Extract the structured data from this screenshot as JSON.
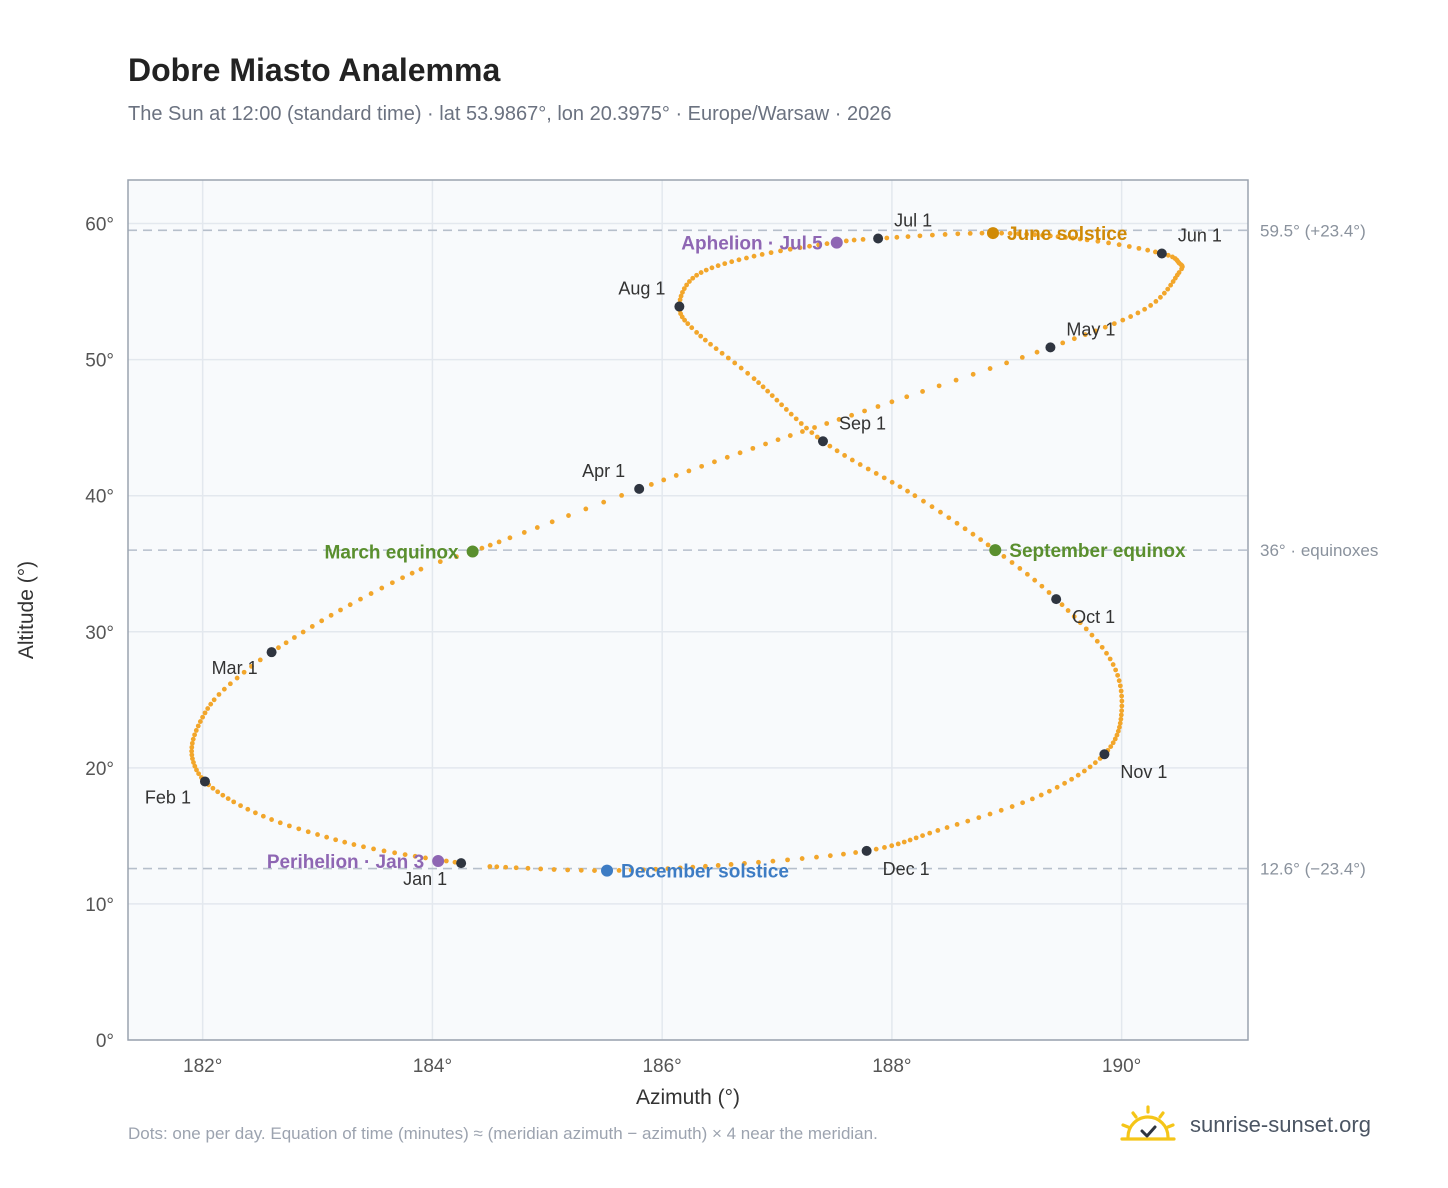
{
  "title": "Dobre Miasto Analemma",
  "subtitle": "The Sun at 12:00 (standard time) · lat 53.9867°, lon 20.3975° · Europe/Warsaw · 2026",
  "footnote": "Dots: one per day. Equation of time (minutes) ≈ (meridian azimuth − azimuth) × 4 near the meridian.",
  "brand": {
    "name": "sunrise-sunset.org",
    "icon": "sun-icon"
  },
  "colors": {
    "curve": "#f2a62b",
    "month_marker": "#2f3540",
    "equinox": "#5a8f2e",
    "june_solstice": "#d08a06",
    "december_solstice": "#3d7cc4",
    "apsis": "#8e66b3",
    "reference_line": "#b6bfcb",
    "plot_background": "#f8fafc",
    "grid": "#e3e8ee",
    "frame": "#9aa3af"
  },
  "chart_data": {
    "type": "scatter",
    "xlabel": "Azimuth (°)",
    "ylabel": "Altitude (°)",
    "xlim": [
      181.35,
      191.1
    ],
    "ylim": [
      0,
      63.2
    ],
    "xticks": [
      182,
      184,
      186,
      188,
      190
    ],
    "xtick_labels": [
      "182°",
      "184°",
      "186°",
      "188°",
      "190°"
    ],
    "yticks": [
      0,
      10,
      20,
      30,
      40,
      50,
      60
    ],
    "ytick_labels": [
      "0°",
      "10°",
      "20°",
      "30°",
      "40°",
      "50°",
      "60°"
    ],
    "grid": true,
    "series": [
      {
        "marker": "dot",
        "frequency": "daily",
        "keyframes": [
          {
            "day": 1,
            "x": 184.25,
            "y": 13.0
          },
          {
            "day": 6,
            "x": 183.85,
            "y": 13.5
          },
          {
            "day": 11,
            "x": 183.4,
            "y": 14.2
          },
          {
            "day": 16,
            "x": 183.0,
            "y": 15.1
          },
          {
            "day": 21,
            "x": 182.6,
            "y": 16.2
          },
          {
            "day": 26,
            "x": 182.27,
            "y": 17.5
          },
          {
            "day": 32,
            "x": 182.02,
            "y": 19.0
          },
          {
            "day": 37,
            "x": 181.92,
            "y": 20.4
          },
          {
            "day": 42,
            "x": 181.91,
            "y": 21.8
          },
          {
            "day": 47,
            "x": 181.98,
            "y": 23.4
          },
          {
            "day": 52,
            "x": 182.1,
            "y": 25.0
          },
          {
            "day": 56,
            "x": 182.3,
            "y": 26.6
          },
          {
            "day": 60,
            "x": 182.6,
            "y": 28.5
          },
          {
            "day": 68,
            "x": 183.2,
            "y": 31.6
          },
          {
            "day": 76,
            "x": 183.9,
            "y": 34.6
          },
          {
            "day": 79,
            "x": 184.35,
            "y": 35.9
          },
          {
            "day": 84,
            "x": 184.8,
            "y": 37.3
          },
          {
            "day": 91,
            "x": 185.8,
            "y": 40.5
          },
          {
            "day": 101,
            "x": 186.9,
            "y": 43.8
          },
          {
            "day": 111,
            "x": 188.0,
            "y": 46.9
          },
          {
            "day": 121,
            "x": 189.38,
            "y": 50.9
          },
          {
            "day": 131,
            "x": 190.2,
            "y": 53.7
          },
          {
            "day": 141,
            "x": 190.5,
            "y": 56.4
          },
          {
            "day": 146,
            "x": 190.5,
            "y": 57.1
          },
          {
            "day": 152,
            "x": 190.35,
            "y": 57.8
          },
          {
            "day": 160,
            "x": 189.7,
            "y": 58.8
          },
          {
            "day": 172,
            "x": 188.88,
            "y": 59.3
          },
          {
            "day": 182,
            "x": 187.88,
            "y": 58.9
          },
          {
            "day": 186,
            "x": 187.5,
            "y": 58.6
          },
          {
            "day": 195,
            "x": 186.8,
            "y": 57.6
          },
          {
            "day": 204,
            "x": 186.3,
            "y": 56.2
          },
          {
            "day": 213,
            "x": 186.15,
            "y": 53.9
          },
          {
            "day": 220,
            "x": 186.3,
            "y": 52.0
          },
          {
            "day": 230,
            "x": 186.8,
            "y": 48.6
          },
          {
            "day": 244,
            "x": 187.4,
            "y": 44.0
          },
          {
            "day": 256,
            "x": 188.2,
            "y": 40.0
          },
          {
            "day": 266,
            "x": 188.9,
            "y": 36.0
          },
          {
            "day": 274,
            "x": 189.43,
            "y": 32.4
          },
          {
            "day": 284,
            "x": 189.9,
            "y": 28.0
          },
          {
            "day": 294,
            "x": 190.0,
            "y": 24.2
          },
          {
            "day": 305,
            "x": 189.85,
            "y": 21.0
          },
          {
            "day": 315,
            "x": 189.3,
            "y": 18.0
          },
          {
            "day": 325,
            "x": 188.4,
            "y": 15.4
          },
          {
            "day": 335,
            "x": 187.78,
            "y": 13.9
          },
          {
            "day": 345,
            "x": 186.6,
            "y": 12.9
          },
          {
            "day": 355,
            "x": 185.52,
            "y": 12.45
          },
          {
            "day": 365,
            "x": 184.5,
            "y": 12.75
          }
        ]
      }
    ],
    "reference_lines": [
      {
        "y": 59.5,
        "label": "59.5° (+23.4°)"
      },
      {
        "y": 36,
        "label": "36° · equinoxes"
      },
      {
        "y": 12.6,
        "label": "12.6° (−23.4°)"
      }
    ],
    "month_markers": [
      {
        "label": "Jan 1",
        "x": 184.25,
        "y": 13.0,
        "label_side": "below-left"
      },
      {
        "label": "Feb 1",
        "x": 182.02,
        "y": 19.0,
        "label_side": "below-left"
      },
      {
        "label": "Mar 1",
        "x": 182.6,
        "y": 28.5,
        "label_side": "below-left"
      },
      {
        "label": "Apr 1",
        "x": 185.8,
        "y": 40.5,
        "label_side": "above-left"
      },
      {
        "label": "May 1",
        "x": 189.38,
        "y": 50.9,
        "label_side": "above-right"
      },
      {
        "label": "Jun 1",
        "x": 190.35,
        "y": 57.8,
        "label_side": "above-right"
      },
      {
        "label": "Jul 1",
        "x": 187.88,
        "y": 58.9,
        "label_side": "above-right"
      },
      {
        "label": "Aug 1",
        "x": 186.15,
        "y": 53.9,
        "label_side": "above-left"
      },
      {
        "label": "Sep 1",
        "x": 187.4,
        "y": 44.0,
        "label_side": "above-right"
      },
      {
        "label": "Oct 1",
        "x": 189.43,
        "y": 32.4,
        "label_side": "below-right"
      },
      {
        "label": "Nov 1",
        "x": 189.85,
        "y": 21.0,
        "label_side": "below-right"
      },
      {
        "label": "Dec 1",
        "x": 187.78,
        "y": 13.9,
        "label_side": "below-right"
      }
    ],
    "events": [
      {
        "label": "June solstice",
        "x": 188.88,
        "y": 59.3,
        "color_key": "june_solstice",
        "label_side": "right"
      },
      {
        "label": "December solstice",
        "x": 185.52,
        "y": 12.45,
        "color_key": "december_solstice",
        "label_side": "right"
      },
      {
        "label": "March equinox",
        "x": 184.35,
        "y": 35.9,
        "color_key": "equinox",
        "label_side": "left"
      },
      {
        "label": "September equinox",
        "x": 188.9,
        "y": 36.0,
        "color_key": "equinox",
        "label_side": "right"
      },
      {
        "label": "Aphelion · Jul 5",
        "x": 187.52,
        "y": 58.6,
        "color_key": "apsis",
        "label_side": "left"
      },
      {
        "label": "Perihelion · Jan 3",
        "x": 184.05,
        "y": 13.15,
        "color_key": "apsis",
        "label_side": "left"
      }
    ]
  }
}
